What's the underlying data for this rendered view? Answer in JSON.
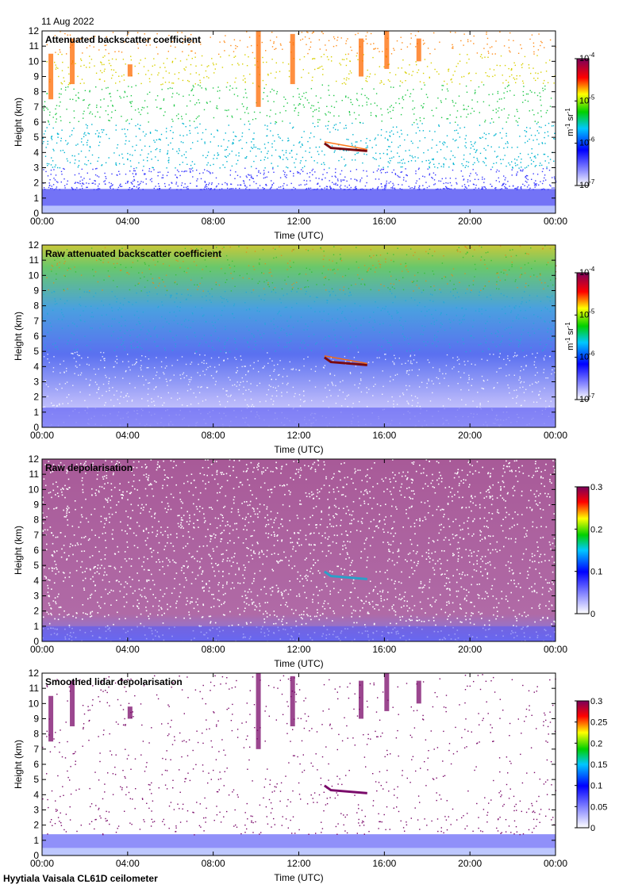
{
  "date_label": "11 Aug 2022",
  "footer": "Hyytiala Vaisala CL61D ceilometer",
  "colors": {
    "high": "#ff8c1a",
    "mid": "#22c84a",
    "low": "#3a3aff",
    "cloud": "#ff6a00",
    "cloud_core": "#7a0a10",
    "depol": "#7a0a6a"
  },
  "chart_data": [
    {
      "type": "heatmap",
      "title": "Attenuated backscatter coefficient",
      "xlabel": "Time (UTC)",
      "ylabel": "Height (km)",
      "xticks": [
        "00:00",
        "04:00",
        "08:00",
        "12:00",
        "16:00",
        "20:00",
        "00:00"
      ],
      "yticks": [
        "0",
        "1",
        "2",
        "3",
        "4",
        "5",
        "6",
        "7",
        "8",
        "9",
        "10",
        "11",
        "12"
      ],
      "xlim_hours": [
        0,
        24
      ],
      "ylim_km": [
        0,
        12
      ],
      "colorbar": {
        "scale": "log",
        "ticks": [
          {
            "base": "10",
            "exp": "-4",
            "value": 0.0001
          },
          {
            "base": "10",
            "exp": "-5",
            "value": 1e-05
          },
          {
            "base": "10",
            "exp": "-6",
            "value": 1e-06
          },
          {
            "base": "10",
            "exp": "-7",
            "value": 1e-07
          }
        ],
        "range": [
          1e-07,
          0.0001
        ],
        "unit_label": {
          "m": "m",
          "m_exp": "-1",
          "sr": "sr",
          "sr_exp": "-1"
        }
      },
      "features": {
        "boundary_layer_top_km": 1.6,
        "cloud_layer": {
          "start_hour": 13.2,
          "end_hour": 15.2,
          "height_km": 4.1
        },
        "cirrus_km": [
          7,
          12
        ]
      }
    },
    {
      "type": "heatmap",
      "title": "Raw attenuated backscatter coefficient",
      "xlabel": "Time (UTC)",
      "ylabel": "Height (km)",
      "xticks": [
        "00:00",
        "04:00",
        "08:00",
        "12:00",
        "16:00",
        "20:00",
        "00:00"
      ],
      "yticks": [
        "0",
        "1",
        "2",
        "3",
        "4",
        "5",
        "6",
        "7",
        "8",
        "9",
        "10",
        "11",
        "12"
      ],
      "xlim_hours": [
        0,
        24
      ],
      "ylim_km": [
        0,
        12
      ],
      "colorbar": {
        "scale": "log",
        "ticks": [
          {
            "base": "10",
            "exp": "-4",
            "value": 0.0001
          },
          {
            "base": "10",
            "exp": "-5",
            "value": 1e-05
          },
          {
            "base": "10",
            "exp": "-6",
            "value": 1e-06
          },
          {
            "base": "10",
            "exp": "-7",
            "value": 1e-07
          }
        ],
        "range": [
          1e-07,
          0.0001
        ],
        "unit_label": {
          "m": "m",
          "m_exp": "-1",
          "sr": "sr",
          "sr_exp": "-1"
        }
      },
      "features": {
        "boundary_layer_top_km": 1.3,
        "cloud_layer": {
          "start_hour": 13.2,
          "end_hour": 15.2,
          "height_km": 4.1
        }
      }
    },
    {
      "type": "heatmap",
      "title": "Raw depolarisation",
      "xlabel": "Time (UTC)",
      "ylabel": "Height (km)",
      "xticks": [
        "00:00",
        "04:00",
        "08:00",
        "12:00",
        "16:00",
        "20:00",
        "00:00"
      ],
      "yticks": [
        "0",
        "1",
        "2",
        "3",
        "4",
        "5",
        "6",
        "7",
        "8",
        "9",
        "10",
        "11",
        "12"
      ],
      "xlim_hours": [
        0,
        24
      ],
      "ylim_km": [
        0,
        12
      ],
      "colorbar": {
        "scale": "linear",
        "ticks": [
          {
            "label": "0.3",
            "value": 0.3
          },
          {
            "label": "0.2",
            "value": 0.2
          },
          {
            "label": "0.1",
            "value": 0.1
          },
          {
            "label": "0",
            "value": 0
          }
        ],
        "range": [
          0,
          0.3
        ]
      },
      "features": {
        "boundary_layer_top_km": 1.0,
        "cloud_layer": {
          "start_hour": 13.2,
          "end_hour": 15.2,
          "height_km": 4.1
        }
      }
    },
    {
      "type": "heatmap",
      "title": "Smoothed lidar depolarisation",
      "xlabel": "Time (UTC)",
      "ylabel": "Height (km)",
      "xticks": [
        "00:00",
        "04:00",
        "08:00",
        "12:00",
        "16:00",
        "20:00",
        "00:00"
      ],
      "yticks": [
        "0",
        "1",
        "2",
        "3",
        "4",
        "5",
        "6",
        "7",
        "8",
        "9",
        "10",
        "11",
        "12"
      ],
      "xlim_hours": [
        0,
        24
      ],
      "ylim_km": [
        0,
        12
      ],
      "colorbar": {
        "scale": "linear",
        "ticks": [
          {
            "label": "0.3",
            "value": 0.3
          },
          {
            "label": "0.25",
            "value": 0.25
          },
          {
            "label": "0.2",
            "value": 0.2
          },
          {
            "label": "0.15",
            "value": 0.15
          },
          {
            "label": "0.1",
            "value": 0.1
          },
          {
            "label": "0.05",
            "value": 0.05
          },
          {
            "label": "0",
            "value": 0
          }
        ],
        "range": [
          0,
          0.3
        ]
      },
      "features": {
        "boundary_layer_top_km": 1.4,
        "cloud_layer": {
          "start_hour": 13.2,
          "end_hour": 15.2,
          "height_km": 4.1
        }
      }
    }
  ]
}
